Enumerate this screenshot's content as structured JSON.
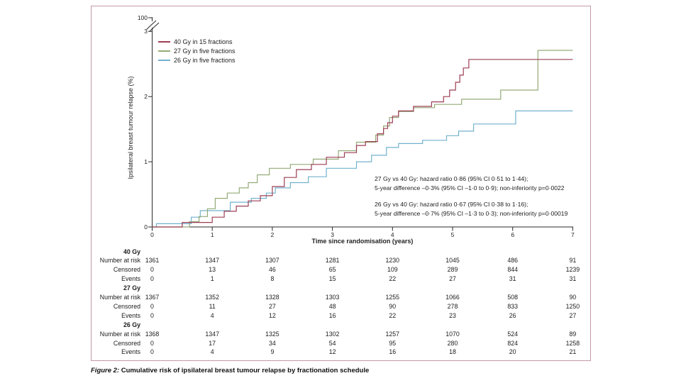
{
  "figure": {
    "caption_label": "Figure 2:",
    "caption_text": " Cumulative risk of ipsilateral breast tumour relapse by fractionation schedule"
  },
  "chart_data": {
    "type": "line",
    "subtype": "kaplan-meier-step",
    "xlabel": "Time since randomisation (years)",
    "ylabel": "Ipsilateral breast tumour relapse (%)",
    "x_ticks": [
      0,
      1,
      2,
      3,
      4,
      5,
      6,
      7
    ],
    "y_ticks": [
      0,
      1,
      2,
      3
    ],
    "y_axis_break_label": "100",
    "xlim": [
      0,
      7
    ],
    "ylim": [
      0,
      3
    ],
    "grid": false,
    "legend_position": "top-left-inside",
    "series": [
      {
        "name": "40 Gy in 15 fractions",
        "color": "#9d3e54",
        "points": [
          [
            0,
            0
          ],
          [
            0.5,
            0.07
          ],
          [
            1.0,
            0.15
          ],
          [
            1.2,
            0.24
          ],
          [
            1.4,
            0.32
          ],
          [
            1.6,
            0.4
          ],
          [
            1.8,
            0.48
          ],
          [
            2.0,
            0.62
          ],
          [
            2.2,
            0.76
          ],
          [
            2.4,
            0.88
          ],
          [
            2.65,
            0.96
          ],
          [
            2.9,
            1.07
          ],
          [
            3.2,
            1.14
          ],
          [
            3.4,
            1.25
          ],
          [
            3.55,
            1.31
          ],
          [
            3.75,
            1.43
          ],
          [
            3.85,
            1.51
          ],
          [
            3.92,
            1.6
          ],
          [
            4.0,
            1.7
          ],
          [
            4.1,
            1.78
          ],
          [
            4.35,
            1.85
          ],
          [
            4.65,
            1.92
          ],
          [
            4.85,
            2.0
          ],
          [
            4.95,
            2.1
          ],
          [
            5.05,
            2.22
          ],
          [
            5.12,
            2.33
          ],
          [
            5.18,
            2.44
          ],
          [
            5.27,
            2.57
          ],
          [
            7,
            2.57
          ]
        ]
      },
      {
        "name": "27 Gy in five fractions",
        "color": "#93ab77",
        "points": [
          [
            0,
            0
          ],
          [
            0.62,
            0.08
          ],
          [
            0.78,
            0.16
          ],
          [
            0.92,
            0.28
          ],
          [
            1.05,
            0.44
          ],
          [
            1.25,
            0.52
          ],
          [
            1.45,
            0.6
          ],
          [
            1.6,
            0.68
          ],
          [
            1.75,
            0.8
          ],
          [
            1.95,
            0.9
          ],
          [
            2.3,
            0.96
          ],
          [
            2.68,
            1.04
          ],
          [
            3.1,
            1.17
          ],
          [
            3.4,
            1.3
          ],
          [
            3.72,
            1.41
          ],
          [
            3.85,
            1.55
          ],
          [
            3.95,
            1.68
          ],
          [
            4.1,
            1.77
          ],
          [
            4.35,
            1.83
          ],
          [
            4.7,
            1.88
          ],
          [
            5.15,
            1.96
          ],
          [
            5.8,
            2.1
          ],
          [
            6.42,
            2.71
          ],
          [
            7,
            2.71
          ]
        ]
      },
      {
        "name": "26 Gy in five fractions",
        "color": "#72b2ce",
        "points": [
          [
            0,
            0
          ],
          [
            0.07,
            0.05
          ],
          [
            0.65,
            0.15
          ],
          [
            0.8,
            0.25
          ],
          [
            1.3,
            0.38
          ],
          [
            1.65,
            0.44
          ],
          [
            1.9,
            0.52
          ],
          [
            2.05,
            0.6
          ],
          [
            2.3,
            0.68
          ],
          [
            2.6,
            0.77
          ],
          [
            2.9,
            0.9
          ],
          [
            3.4,
            1.0
          ],
          [
            3.65,
            1.1
          ],
          [
            3.9,
            1.22
          ],
          [
            4.1,
            1.28
          ],
          [
            4.5,
            1.33
          ],
          [
            4.9,
            1.4
          ],
          [
            5.1,
            1.47
          ],
          [
            5.35,
            1.58
          ],
          [
            6.05,
            1.78
          ],
          [
            7,
            1.78
          ]
        ]
      }
    ],
    "annotations": [
      "27 Gy vs 40 Gy: hazard ratio 0·86 (95% CI 0·51 to 1·44);",
      "5-year difference –0·3% (95% CI –1·0 to 0·9); non-inferiority p=0·0022",
      "26 Gy vs 40 Gy: hazard ratio 0·67 (95% CI 0·38 to 1·16);",
      "5-year difference –0·7% (95% CI –1·3 to 0·3); non-inferiority p=0·00019"
    ]
  },
  "risk_table": {
    "row_labels": [
      "Number at risk",
      "Censored",
      "Events"
    ],
    "groups": [
      {
        "name": "40 Gy",
        "number_at_risk": [
          1361,
          1347,
          1307,
          1281,
          1230,
          1045,
          486,
          91
        ],
        "censored": [
          0,
          13,
          46,
          65,
          109,
          289,
          844,
          1239
        ],
        "events": [
          0,
          1,
          8,
          15,
          22,
          27,
          31,
          31
        ]
      },
      {
        "name": "27 Gy",
        "number_at_risk": [
          1367,
          1352,
          1328,
          1303,
          1255,
          1066,
          508,
          90
        ],
        "censored": [
          0,
          11,
          27,
          48,
          90,
          278,
          833,
          1250
        ],
        "events": [
          0,
          4,
          12,
          16,
          22,
          23,
          26,
          27
        ]
      },
      {
        "name": "26 Gy",
        "number_at_risk": [
          1368,
          1347,
          1325,
          1302,
          1257,
          1070,
          524,
          89
        ],
        "censored": [
          0,
          17,
          34,
          54,
          95,
          280,
          824,
          1258
        ],
        "events": [
          0,
          4,
          9,
          12,
          16,
          18,
          20,
          21
        ]
      }
    ]
  }
}
